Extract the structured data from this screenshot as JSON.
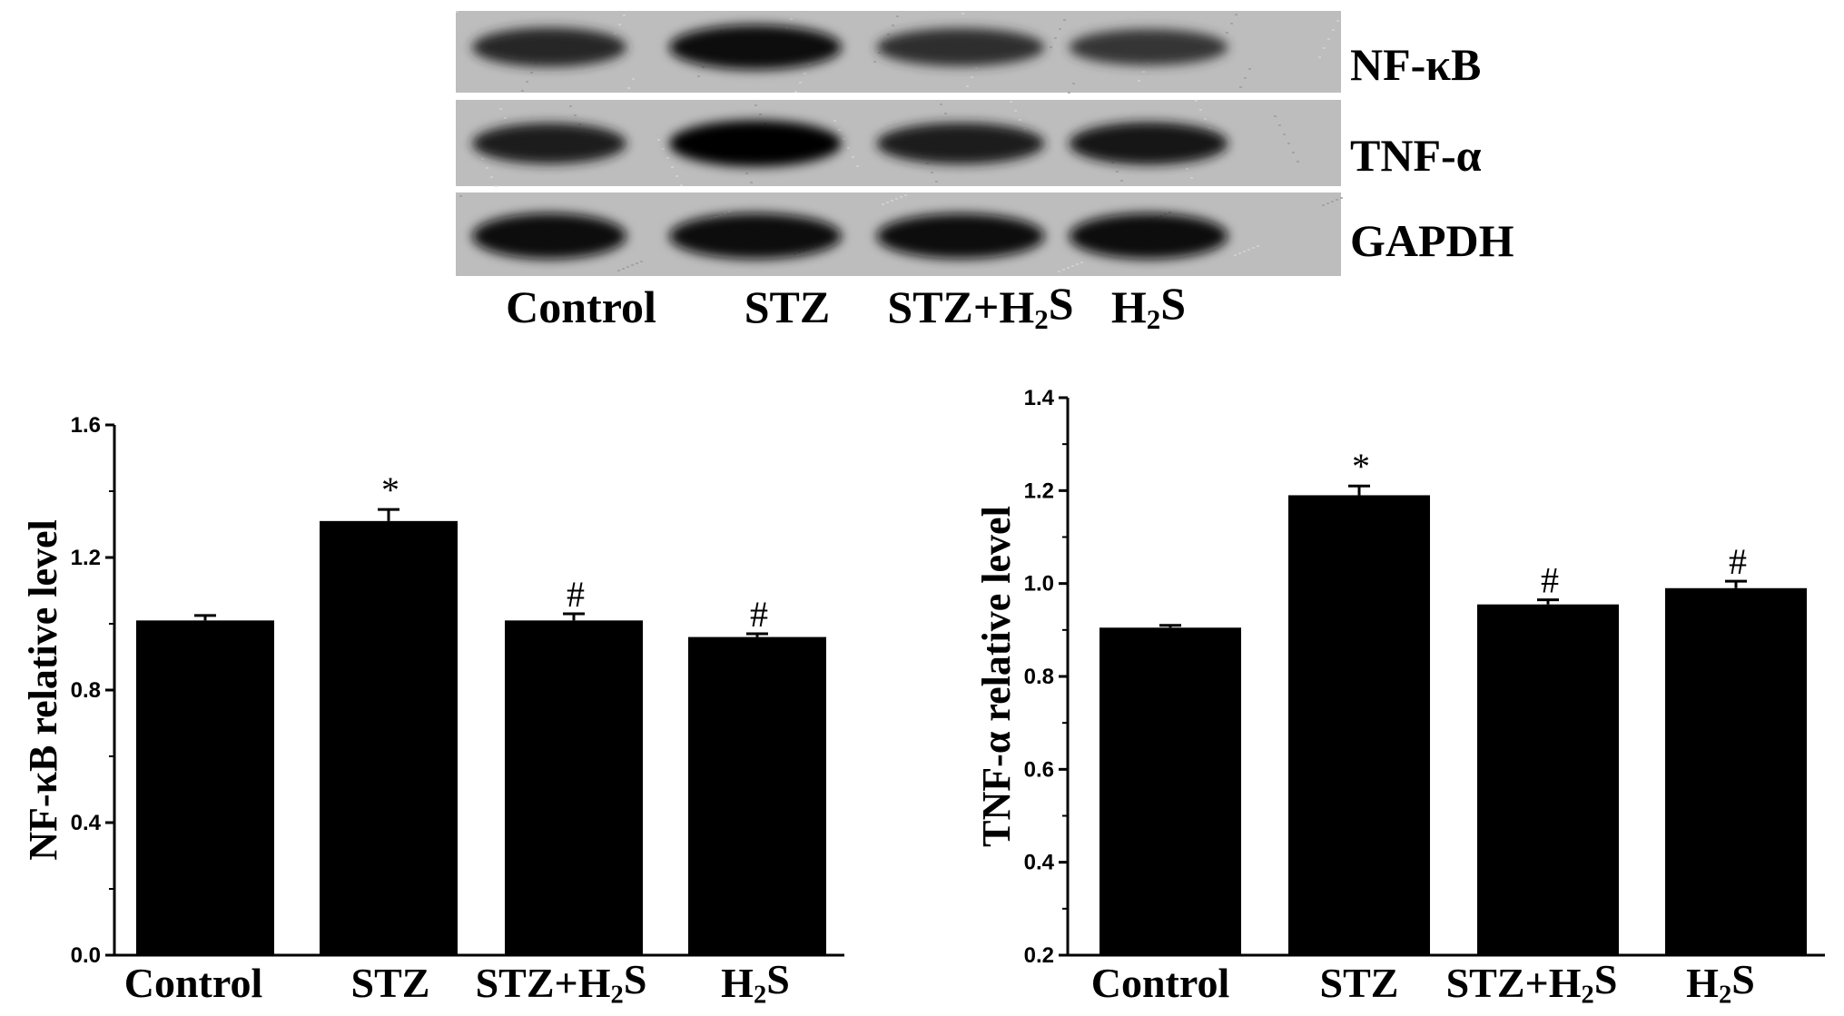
{
  "blot": {
    "rows": [
      {
        "label": "NF-κB",
        "intensities": [
          0.72,
          0.92,
          0.68,
          0.62
        ]
      },
      {
        "label": "TNF-α",
        "intensities": [
          0.78,
          0.98,
          0.8,
          0.84
        ]
      },
      {
        "label": "GAPDH",
        "intensities": [
          0.95,
          0.95,
          0.93,
          0.95
        ]
      }
    ],
    "lanes": [
      {
        "main": "Control",
        "sub": "",
        "tail": ""
      },
      {
        "main": "STZ",
        "sub": "",
        "tail": ""
      },
      {
        "main": "STZ+H",
        "sub": "2",
        "tail": "S"
      },
      {
        "main": "H",
        "sub": "2",
        "tail": "S"
      }
    ]
  },
  "chart_data": [
    {
      "type": "bar",
      "categories": [
        {
          "main": "Control",
          "sub": "",
          "tail": ""
        },
        {
          "main": "STZ",
          "sub": "",
          "tail": ""
        },
        {
          "main": "STZ+H",
          "sub": "2",
          "tail": "S"
        },
        {
          "main": "H",
          "sub": "2",
          "tail": "S"
        }
      ],
      "values": [
        1.01,
        1.31,
        1.01,
        0.96
      ],
      "errors": [
        0.015,
        0.035,
        0.02,
        0.01
      ],
      "annotations": [
        "",
        "*",
        "#",
        "#"
      ],
      "ylabel": "NF-κB relative level",
      "ylim": [
        0,
        1.6
      ],
      "yticks": [
        0.0,
        0.4,
        0.8,
        1.2,
        1.6
      ],
      "ytick_labels": [
        "0.0",
        "0.4",
        "0.8",
        "1.2",
        "1.6"
      ],
      "bar_color": "#000000",
      "grid": false
    },
    {
      "type": "bar",
      "categories": [
        {
          "main": "Control",
          "sub": "",
          "tail": ""
        },
        {
          "main": "STZ",
          "sub": "",
          "tail": ""
        },
        {
          "main": "STZ+H",
          "sub": "2",
          "tail": "S"
        },
        {
          "main": "H",
          "sub": "2",
          "tail": "S"
        }
      ],
      "values": [
        0.905,
        1.19,
        0.955,
        0.99
      ],
      "errors": [
        0.005,
        0.02,
        0.01,
        0.015
      ],
      "annotations": [
        "",
        "*",
        "#",
        "#"
      ],
      "ylabel": "TNF-α relative level",
      "ylim": [
        0.2,
        1.4
      ],
      "yticks": [
        0.2,
        0.4,
        0.6,
        0.8,
        1.0,
        1.2,
        1.4
      ],
      "ytick_labels": [
        "0.2",
        "0.4",
        "0.6",
        "0.8",
        "1.0",
        "1.2",
        "1.4"
      ],
      "bar_color": "#000000",
      "grid": false
    }
  ]
}
